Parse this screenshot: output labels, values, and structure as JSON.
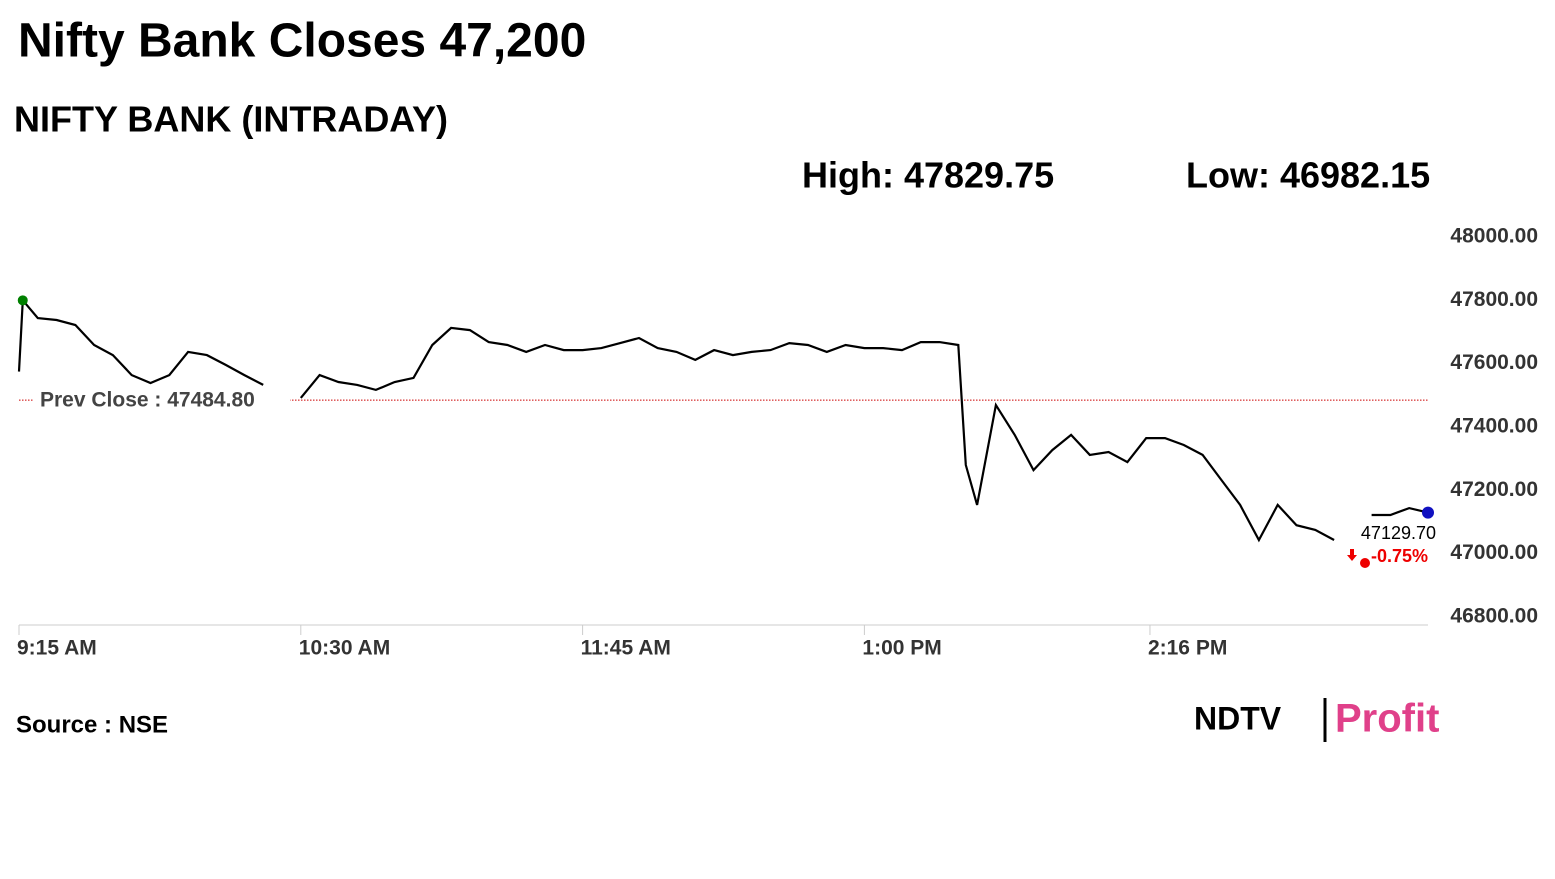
{
  "chart_data": {
    "type": "line",
    "title": "Nifty Bank Closes 47,200",
    "subtitle": "NIFTY BANK (INTRADAY)",
    "high": "High: 47829.75",
    "low": "Low: 46982.15",
    "source": "Source : NSE",
    "logo": [
      "NDTV",
      "Profit"
    ],
    "prev_close": {
      "value": 47484.8,
      "label": "Prev Close : 47484.80"
    },
    "last_label": "47129.70",
    "change_label": "-0.75%",
    "color": "#000000",
    "x": [
      "9:15 AM",
      "9:16 AM",
      "9:20 AM",
      "9:25 AM",
      "9:30 AM",
      "9:35 AM",
      "9:40 AM",
      "9:45 AM",
      "9:50 AM",
      "9:55 AM",
      "10:00 AM",
      "10:05 AM",
      "10:10 AM",
      "10:15 AM",
      "10:20 AM",
      "10:25 AM",
      "10:30 AM",
      "10:35 AM",
      "10:40 AM",
      "10:45 AM",
      "10:50 AM",
      "10:55 AM",
      "11:00 AM",
      "11:05 AM",
      "11:10 AM",
      "11:15 AM",
      "11:20 AM",
      "11:25 AM",
      "11:30 AM",
      "11:35 AM",
      "11:40 AM",
      "11:45 AM",
      "11:50 AM",
      "11:55 AM",
      "12:00 PM",
      "12:05 PM",
      "12:10 PM",
      "12:15 PM",
      "12:20 PM",
      "12:25 PM",
      "12:30 PM",
      "12:35 PM",
      "12:40 PM",
      "12:45 PM",
      "12:50 PM",
      "12:55 PM",
      "1:00 PM",
      "1:05 PM",
      "1:10 PM",
      "1:15 PM",
      "1:20 PM",
      "1:25 PM",
      "1:27 PM",
      "1:30 PM",
      "1:35 PM",
      "1:40 PM",
      "1:45 PM",
      "1:50 PM",
      "1:55 PM",
      "2:00 PM",
      "2:05 PM",
      "2:10 PM",
      "2:15 PM",
      "2:20 PM",
      "2:25 PM",
      "2:30 PM",
      "2:35 PM",
      "2:40 PM",
      "2:45 PM",
      "2:50 PM",
      "2:55 PM",
      "3:00 PM",
      "3:05 PM",
      "3:10 PM",
      "3:15 PM",
      "3:20 PM",
      "3:25 PM",
      "3:30 PM"
    ],
    "values": [
      47575,
      47800,
      47744,
      47738,
      47722,
      47659,
      47627,
      47564,
      47539,
      47564,
      47637,
      47627,
      47596,
      47564,
      47533,
      null,
      47492,
      47564,
      47542,
      47533,
      47517,
      47542,
      47555,
      47659,
      47713,
      47706,
      47668,
      47659,
      47637,
      47659,
      47643,
      47643,
      47649,
      47665,
      47681,
      47649,
      47637,
      47612,
      47643,
      47627,
      47637,
      47643,
      47665,
      47659,
      47637,
      47659,
      47649,
      47649,
      47643,
      47668,
      47668,
      47659,
      47280,
      47154,
      47469,
      47375,
      47264,
      47327,
      47375,
      47312,
      47321,
      47289,
      47365,
      47365,
      47343,
      47312,
      47233,
      47154,
      47043,
      47154,
      47090,
      47075,
      47043,
      null,
      47122,
      47122,
      47144,
      47129.7
    ],
    "xlim": [
      "9:15 AM",
      "3:30 PM"
    ],
    "xticks": [
      "9:15 AM",
      "10:30 AM",
      "11:45 AM",
      "1:00 PM",
      "2:16 PM"
    ],
    "ylim": [
      46800,
      48000
    ],
    "yticks": [
      {
        "value": 46800,
        "label": "46800.00"
      },
      {
        "value": 47000,
        "label": "47000.00"
      },
      {
        "value": 47200,
        "label": "47200.00"
      },
      {
        "value": 47400,
        "label": "47400.00"
      },
      {
        "value": 47600,
        "label": "47600.00"
      },
      {
        "value": 47800,
        "label": "47800.00"
      },
      {
        "value": 48000,
        "label": "48000.00"
      }
    ]
  }
}
